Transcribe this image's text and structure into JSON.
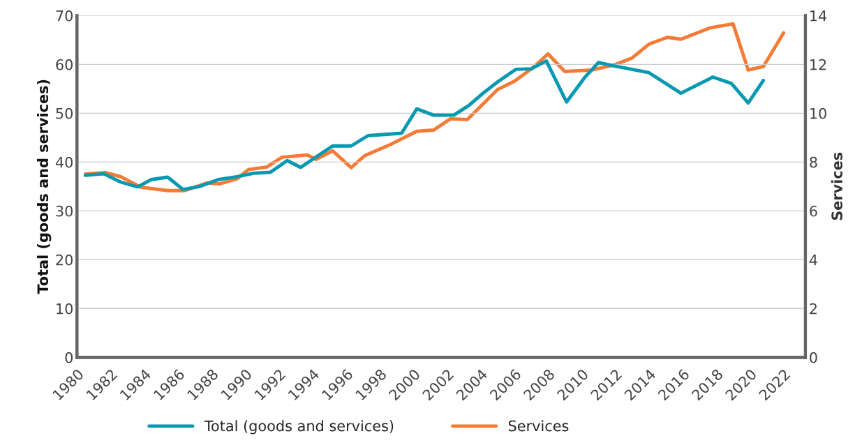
{
  "chart_data": {
    "type": "line",
    "ylabel": "Total (goods and services)",
    "y2label": "Services",
    "xlim": [
      1980,
      2023.3
    ],
    "xticks": [
      1980,
      1982,
      1984,
      1986,
      1988,
      1990,
      1992,
      1994,
      1996,
      1998,
      2000,
      2002,
      2004,
      2006,
      2008,
      2010,
      2012,
      2014,
      2016,
      2018,
      2020,
      2022
    ],
    "ylim": [
      0,
      70
    ],
    "yticks": [
      0,
      10,
      20,
      30,
      40,
      50,
      60,
      70
    ],
    "y2lim": [
      0,
      14
    ],
    "y2ticks": [
      0,
      2,
      4,
      6,
      8,
      10,
      12,
      14
    ],
    "grid": "y",
    "legend": "bottom",
    "line_style": "solid",
    "series": [
      {
        "name": "Total (goods and services)",
        "color": "#0899b2",
        "x": [
          1980.5,
          1981.6,
          1982.6,
          1983.6,
          1984.4,
          1985.4,
          1986.3,
          1987.3,
          1988.4,
          1989.5,
          1990.5,
          1991.5,
          1992.5,
          1993.3,
          1994.2,
          1995.2,
          1996.3,
          1997.3,
          1999.3,
          2000.2,
          2001.2,
          2002.4,
          2003.3,
          2004.1,
          2005.0,
          2006.1,
          2007.0,
          2007.9,
          2009.1,
          2010.2,
          2011.0,
          2011.9,
          2014.0,
          2015.9,
          2017.8,
          2018.9,
          2019.9,
          2020.8
        ],
        "values": [
          37.3,
          37.6,
          35.9,
          34.9,
          36.4,
          36.9,
          34.4,
          35.0,
          36.4,
          37.0,
          37.7,
          37.9,
          40.3,
          38.9,
          41.0,
          43.3,
          43.3,
          45.4,
          45.9,
          50.9,
          49.6,
          49.6,
          51.6,
          54.0,
          56.4,
          59.0,
          59.1,
          60.7,
          52.3,
          57.4,
          60.4,
          59.7,
          58.3,
          54.1,
          57.4,
          56.1,
          52.1,
          56.7
        ]
      },
      {
        "name": "Services",
        "color": "#f47b35",
        "axis": "y2",
        "x": [
          1980.5,
          1981.7,
          1982.6,
          1983.8,
          1985.4,
          1986.4,
          1987.7,
          1988.5,
          1989.5,
          1990.2,
          1991.3,
          1992.2,
          1993.7,
          1994.2,
          1995.2,
          1996.3,
          1997.1,
          1998.7,
          2000.2,
          2001.2,
          2002.2,
          2003.2,
          2005.0,
          2006.0,
          2007.1,
          2008.0,
          2009.0,
          2010.6,
          2011.9,
          2013.0,
          2014.0,
          2015.1,
          2015.9,
          2017.6,
          2019.0,
          2019.9,
          2020.8,
          2022.0
        ],
        "values": [
          7.51,
          7.57,
          7.4,
          6.97,
          6.83,
          6.83,
          7.14,
          7.11,
          7.31,
          7.69,
          7.8,
          8.2,
          8.29,
          8.11,
          8.46,
          7.77,
          8.26,
          8.74,
          9.26,
          9.31,
          9.77,
          9.74,
          10.97,
          11.31,
          11.86,
          12.43,
          11.71,
          11.77,
          11.97,
          12.26,
          12.83,
          13.11,
          13.03,
          13.49,
          13.66,
          11.77,
          11.91,
          13.29
        ]
      }
    ]
  }
}
